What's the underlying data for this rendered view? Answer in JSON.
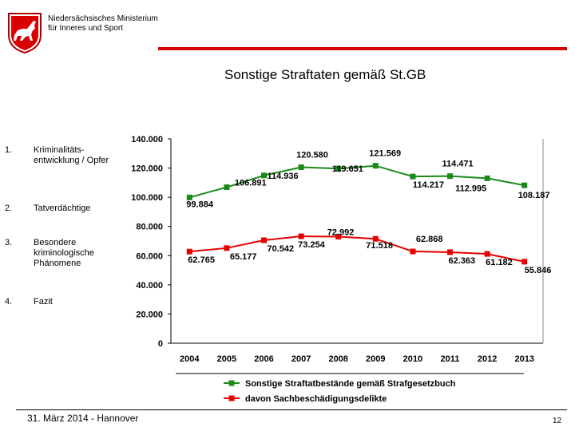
{
  "header": {
    "ministry_line1": "Niedersächsisches Ministerium",
    "ministry_line2": "für Inneres und Sport",
    "slide_title": "Sonstige Straftaten gemäß St.GB"
  },
  "navigation": [
    {
      "number": "1.",
      "label": "Kriminalitäts-entwicklung / Opfer",
      "active": true
    },
    {
      "number": "2.",
      "label": "Tatverdächtige",
      "active": false
    },
    {
      "number": "3.",
      "label": "Besondere kriminologische Phänomene",
      "active": false
    },
    {
      "number": "4.",
      "label": "Fazit",
      "active": false
    }
  ],
  "chart_data": {
    "type": "line",
    "title": "",
    "xlabel": "",
    "ylabel": "",
    "categories": [
      "2004",
      "2005",
      "2006",
      "2007",
      "2008",
      "2009",
      "2010",
      "2011",
      "2012",
      "2013"
    ],
    "ylim": [
      0,
      140000
    ],
    "yticks": [
      0,
      20000,
      40000,
      60000,
      80000,
      100000,
      120000,
      140000
    ],
    "ytick_labels": [
      "0",
      "20.000",
      "40.000",
      "60.000",
      "80.000",
      "100.000",
      "120.000",
      "140.000"
    ],
    "legend_position": "bottom",
    "series": [
      {
        "name": "Sonstige Straftatbestände gemäß Strafgesetzbuch",
        "color": "#1a8a1a",
        "values": [
          99884,
          106891,
          114936,
          120580,
          119651,
          121569,
          114217,
          114471,
          112995,
          108187
        ],
        "labels": [
          "99.884",
          "106.891",
          "114.936",
          "120.580",
          "119.651",
          "121.569",
          "114.217",
          "114.471",
          "112.995",
          "108.187"
        ]
      },
      {
        "name": "davon Sachbeschädigungsdelikte",
        "color": "#e60000",
        "values": [
          62765,
          65177,
          70542,
          73254,
          72992,
          71518,
          62868,
          62363,
          61182,
          55846
        ],
        "labels": [
          "62.765",
          "65.177",
          "70.542",
          "73.254",
          "72.992",
          "71.518",
          "62.868",
          "62.363",
          "61.182",
          "55.846"
        ]
      }
    ]
  },
  "footer": {
    "event": "31. März 2014 - Hannover",
    "page": "12"
  }
}
